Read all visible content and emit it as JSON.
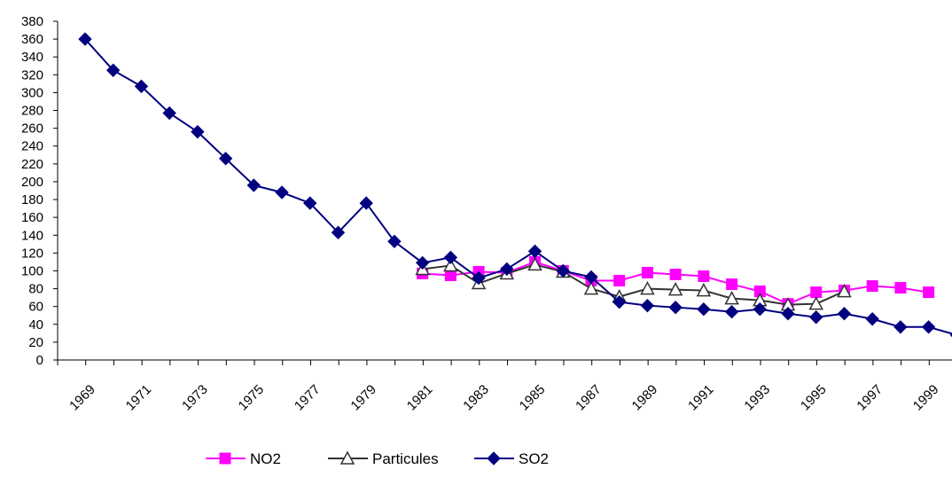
{
  "chart_data": {
    "type": "line",
    "x": [
      1969,
      1970,
      1971,
      1972,
      1973,
      1974,
      1975,
      1976,
      1977,
      1978,
      1979,
      1980,
      1981,
      1982,
      1983,
      1984,
      1985,
      1986,
      1987,
      1988,
      1989,
      1990,
      1991,
      1992,
      1993,
      1994,
      1995,
      1996,
      1997,
      1998,
      1999,
      2000
    ],
    "x_tick_labels": [
      "1969",
      "1971",
      "1973",
      "1975",
      "1977",
      "1979",
      "1981",
      "1983",
      "1985",
      "1987",
      "1989",
      "1991",
      "1993",
      "1995",
      "1997",
      "1999"
    ],
    "ylim": [
      0,
      380
    ],
    "y_ticks": [
      0,
      20,
      40,
      60,
      80,
      100,
      120,
      140,
      160,
      180,
      200,
      220,
      240,
      260,
      280,
      300,
      320,
      340,
      360,
      380
    ],
    "grid": false,
    "legend_position": "bottom",
    "series": [
      {
        "name": "NO2",
        "color": "#ff00ff",
        "marker": "square",
        "values": [
          null,
          null,
          null,
          null,
          null,
          null,
          null,
          null,
          null,
          null,
          null,
          null,
          97,
          95,
          99,
          98,
          110,
          100,
          89,
          89,
          98,
          96,
          94,
          85,
          77,
          63,
          76,
          78,
          83,
          81,
          76,
          null
        ]
      },
      {
        "name": "Particules",
        "color": "#333333",
        "marker": "triangle-open",
        "values": [
          null,
          null,
          null,
          null,
          null,
          null,
          null,
          null,
          null,
          null,
          null,
          null,
          102,
          106,
          86,
          97,
          107,
          99,
          80,
          71,
          80,
          79,
          78,
          69,
          67,
          62,
          63,
          77,
          null,
          null,
          null,
          null
        ]
      },
      {
        "name": "SO2",
        "color": "#000080",
        "marker": "diamond",
        "values": [
          360,
          325,
          307,
          277,
          256,
          226,
          196,
          188,
          176,
          143,
          176,
          133,
          109,
          115,
          92,
          102,
          122,
          100,
          93,
          65,
          61,
          59,
          57,
          54,
          57,
          52,
          48,
          52,
          46,
          37,
          37,
          28
        ]
      }
    ]
  }
}
